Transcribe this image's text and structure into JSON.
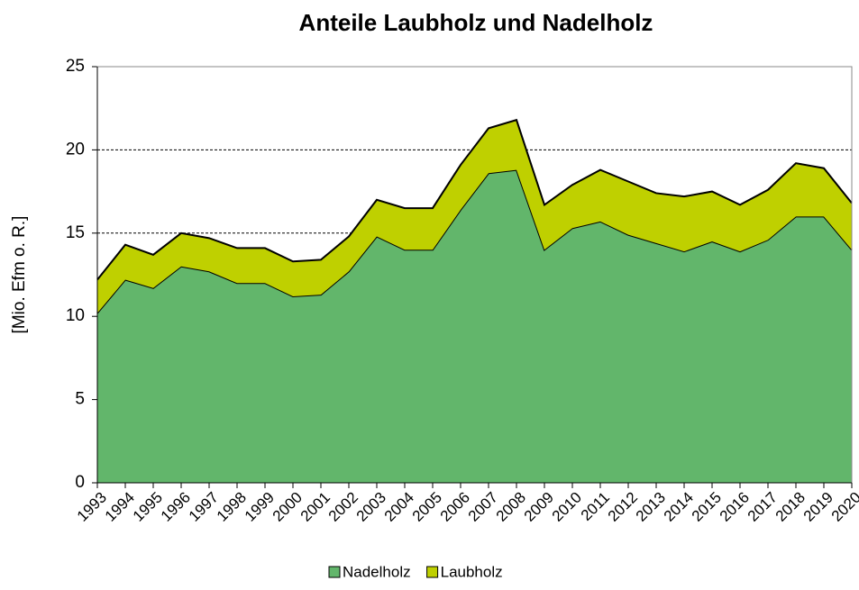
{
  "chart_data": {
    "type": "stacked_area",
    "title": "Anteile Laubholz und Nadelholz",
    "y_label": "[Mio. Efm o. R.]",
    "categories": [
      "1993",
      "1994",
      "1995",
      "1996",
      "1997",
      "1998",
      "1999",
      "2000",
      "2001",
      "2002",
      "2003",
      "2004",
      "2005",
      "2006",
      "2007",
      "2008",
      "2009",
      "2010",
      "2011",
      "2012",
      "2013",
      "2014",
      "2015",
      "2016",
      "2017",
      "2018",
      "2019",
      "2020"
    ],
    "series": [
      {
        "name": "Nadelholz",
        "color": "#62b66b",
        "values": [
          10.2,
          12.2,
          11.7,
          13.0,
          12.7,
          12.0,
          12.0,
          11.2,
          11.3,
          12.7,
          14.8,
          14.0,
          14.0,
          16.4,
          18.6,
          18.8,
          14.0,
          15.3,
          15.7,
          14.9,
          14.4,
          13.9,
          14.5,
          13.9,
          14.6,
          16.0,
          16.0,
          14.0
        ]
      },
      {
        "name": "Laubholz",
        "color": "#bfd000",
        "values": [
          2.0,
          2.1,
          2.0,
          2.0,
          2.0,
          2.1,
          2.1,
          2.1,
          2.1,
          2.1,
          2.2,
          2.5,
          2.5,
          2.7,
          2.7,
          3.0,
          2.7,
          2.6,
          3.1,
          3.2,
          3.0,
          3.3,
          3.0,
          2.8,
          3.0,
          3.2,
          2.9,
          2.8
        ]
      }
    ],
    "ylim": [
      0,
      25
    ],
    "yticks": [
      0,
      5,
      10,
      15,
      20,
      25
    ],
    "grid": true,
    "legend": "bottom"
  }
}
